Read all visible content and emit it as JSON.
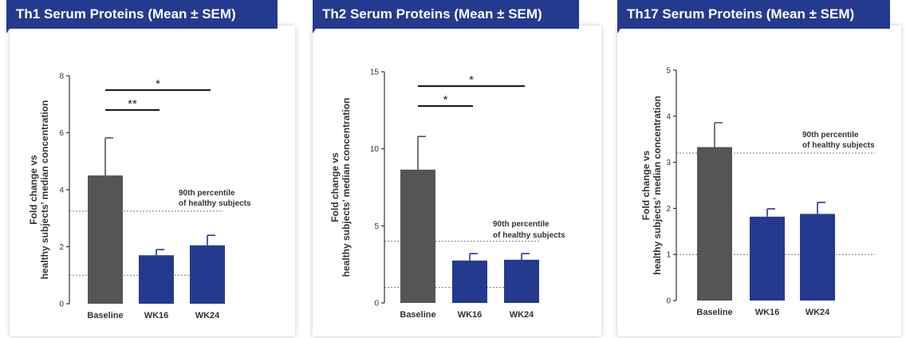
{
  "colors": {
    "banner": "#243a8e",
    "baseline_bar": "#555555",
    "treatment_bar": "#243a8e",
    "axis": "#333333",
    "reference_line": "#777777",
    "significance_bar": "#222222"
  },
  "panels": [
    {
      "title": "Th1 Serum Proteins (Mean ± SEM)",
      "ylabel_line1": "Fold change vs",
      "ylabel_line2": "healthy subjects’ median concentration",
      "percentile_label_line1": "90th percentile",
      "percentile_label_line2": "of healthy subjects"
    },
    {
      "title": "Th2 Serum Proteins (Mean ± SEM)",
      "ylabel_line1": "Fold change vs",
      "ylabel_line2": "healthy subjects’ median concentration",
      "percentile_label_line1": "90th percentile",
      "percentile_label_line2": "of healthy subjects"
    },
    {
      "title": "Th17 Serum Proteins (Mean ± SEM)",
      "ylabel_line1": "Fold change vs",
      "ylabel_line2": "healthy subjects’ median concentration",
      "percentile_label_line1": "90th percentile",
      "percentile_label_line2": "of healthy subjects"
    }
  ],
  "chart_data": [
    {
      "type": "bar",
      "title": "Th1 Serum Proteins (Mean ± SEM)",
      "categories": [
        "Baseline",
        "WK16",
        "WK24"
      ],
      "values": [
        4.5,
        1.7,
        2.05
      ],
      "errors": [
        1.32,
        0.2,
        0.35
      ],
      "ylabel": "Fold change vs healthy subjects’ median concentration",
      "ylim": [
        0,
        8
      ],
      "yticks": [
        0,
        2,
        4,
        6,
        8
      ],
      "reference_lines": [
        {
          "y": 3.25,
          "label": "90th percentile of healthy subjects"
        },
        {
          "y": 1.0
        }
      ],
      "significance": [
        {
          "from": "Baseline",
          "to": "WK24",
          "label": "*"
        },
        {
          "from": "Baseline",
          "to": "WK16",
          "label": "**"
        }
      ]
    },
    {
      "type": "bar",
      "title": "Th2 Serum Proteins (Mean ± SEM)",
      "categories": [
        "Baseline",
        "WK16",
        "WK24"
      ],
      "values": [
        8.65,
        2.75,
        2.8
      ],
      "errors": [
        2.15,
        0.45,
        0.4
      ],
      "ylabel": "Fold change vs healthy subjects’ median concentration",
      "ylim": [
        0,
        15
      ],
      "yticks": [
        0,
        5,
        10,
        15
      ],
      "reference_lines": [
        {
          "y": 4.0,
          "label": "90th percentile of healthy subjects"
        },
        {
          "y": 1.0
        }
      ],
      "significance": [
        {
          "from": "Baseline",
          "to": "WK24",
          "label": "*"
        },
        {
          "from": "Baseline",
          "to": "WK16",
          "label": "*"
        }
      ]
    },
    {
      "type": "bar",
      "title": "Th17 Serum Proteins (Mean ± SEM)",
      "categories": [
        "Baseline",
        "WK16",
        "WK24"
      ],
      "values": [
        3.33,
        1.82,
        1.88
      ],
      "errors": [
        0.53,
        0.17,
        0.25
      ],
      "ylabel": "Fold change vs healthy subjects’ median concentration",
      "ylim": [
        0,
        5
      ],
      "yticks": [
        0,
        1,
        2,
        3,
        4,
        5
      ],
      "reference_lines": [
        {
          "y": 3.2,
          "label": "90th percentile of healthy subjects"
        },
        {
          "y": 1.0
        }
      ],
      "significance": []
    }
  ]
}
